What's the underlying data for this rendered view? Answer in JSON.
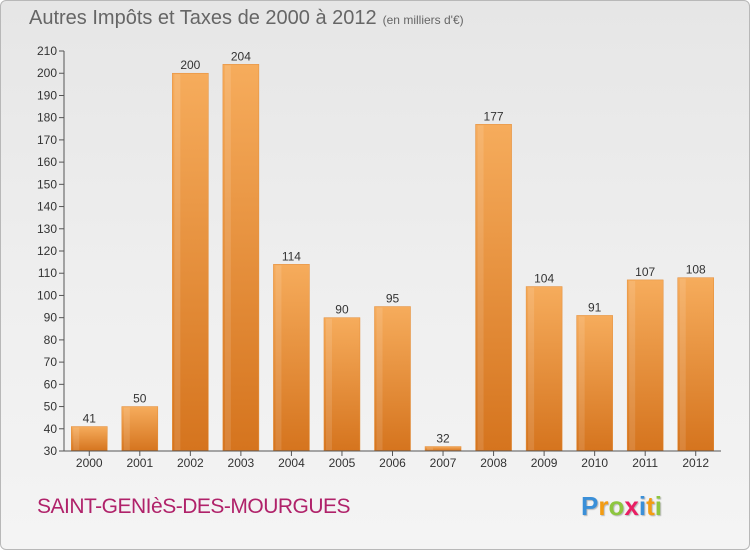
{
  "title": "Autres Impôts et Taxes de 2000 à 2012",
  "unit": "(en milliers d'€)",
  "commune": "SAINT-GENIèS-DES-MOURGUES",
  "logo": {
    "letters": [
      "P",
      "r",
      "o",
      "x",
      "i",
      "t",
      "i"
    ],
    "colors": [
      "#3a8fd8",
      "#f39c12",
      "#8dc63f",
      "#e91e63",
      "#3a8fd8",
      "#f39c12",
      "#8dc63f"
    ]
  },
  "colors": {
    "bar_light": "#f6ac5c",
    "bar_dark": "#d5741e",
    "commune": "#b0226a",
    "axis_text": "#333333"
  },
  "chart_data": {
    "type": "bar",
    "title": "Autres Impôts et Taxes de 2000 à 2012",
    "ylabel": "",
    "xlabel": "",
    "categories": [
      "2000",
      "2001",
      "2002",
      "2003",
      "2004",
      "2005",
      "2006",
      "2007",
      "2008",
      "2009",
      "2010",
      "2011",
      "2012"
    ],
    "values": [
      41,
      50,
      200,
      204,
      114,
      90,
      95,
      32,
      177,
      104,
      91,
      107,
      108
    ],
    "ylim": [
      30,
      210
    ],
    "yticks": [
      30,
      40,
      50,
      60,
      70,
      80,
      90,
      100,
      110,
      120,
      130,
      140,
      150,
      160,
      170,
      180,
      190,
      200,
      210
    ],
    "grid": false,
    "data_labels": true
  }
}
